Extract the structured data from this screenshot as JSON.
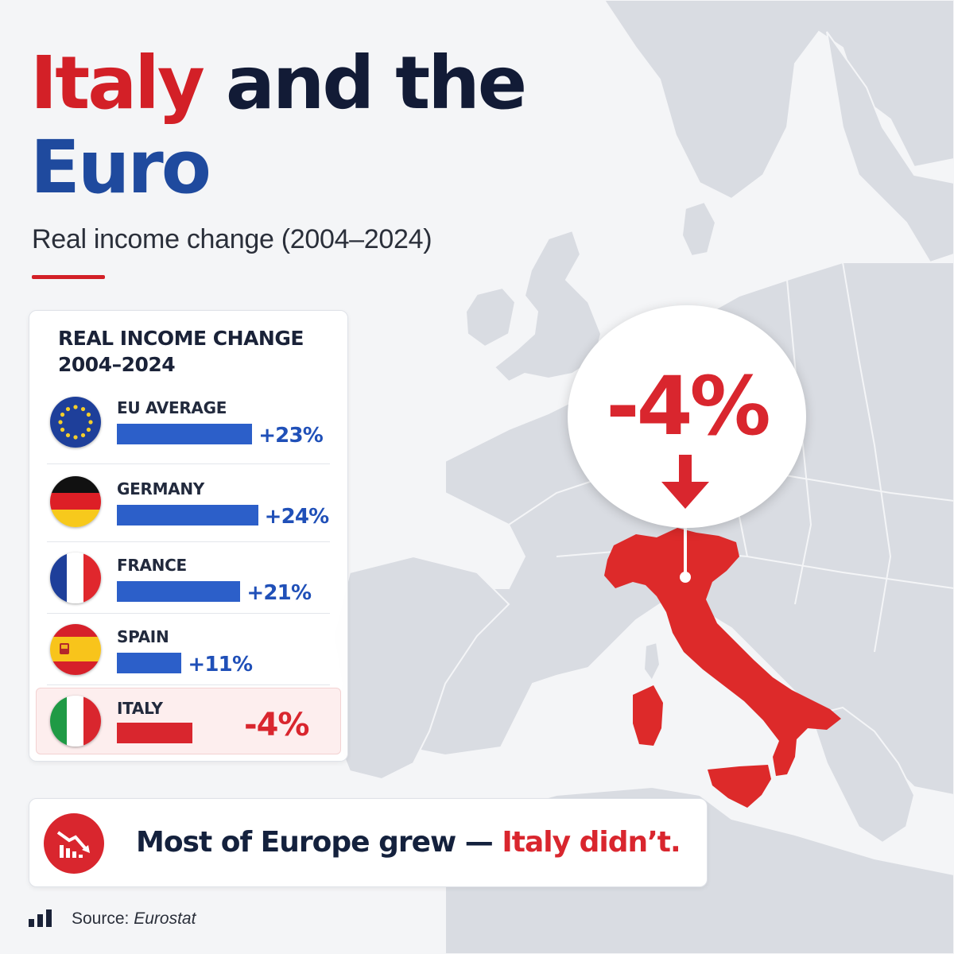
{
  "title": {
    "word_red": "Italy",
    "word_navy": "and the",
    "word_blue": "Euro"
  },
  "subtitle": "Real income change (2004–2024)",
  "chart_data": {
    "type": "bar",
    "title": "REAL INCOME CHANGE 2004–2024",
    "categories": [
      "EU AVERAGE",
      "GERMANY",
      "FRANCE",
      "SPAIN",
      "ITALY"
    ],
    "values": [
      23,
      24,
      21,
      11,
      -4
    ],
    "value_labels": [
      "+23%",
      "+24%",
      "+21%",
      "+11%",
      "-4%"
    ],
    "unit": "%",
    "orientation": "horizontal",
    "grid": false,
    "flags": [
      "eu-flag-icon",
      "germany-flag-icon",
      "france-flag-icon",
      "spain-flag-icon",
      "italy-flag-icon"
    ],
    "colors": {
      "positive": "#2c5fc9",
      "negative": "#d9262e"
    }
  },
  "callout": {
    "value": "-4%"
  },
  "banner": {
    "icon": "declining-chart-icon",
    "text_main": "Most of Europe grew — ",
    "text_highlight": "Italy didn’t."
  },
  "source": {
    "label": "Source: ",
    "name": "Eurostat",
    "icon": "bar-chart-icon"
  },
  "colors": {
    "accent_red": "#d32027",
    "navy": "#121b36",
    "blue": "#1f4a9e",
    "map_land": "#d9dce2",
    "italy_red": "#dd2a2a"
  }
}
